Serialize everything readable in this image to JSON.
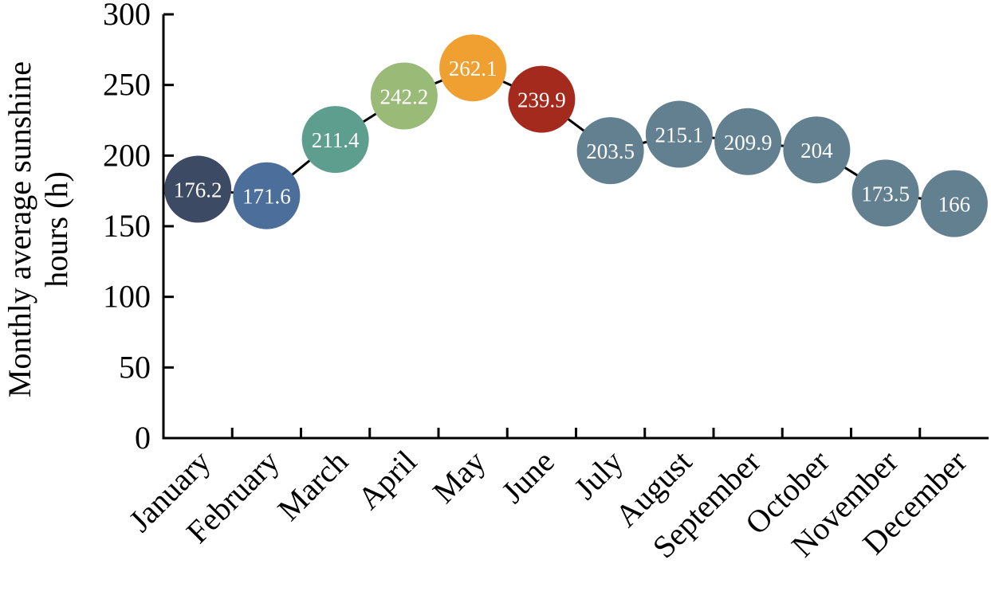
{
  "chart_data": {
    "type": "line",
    "categories": [
      "January",
      "February",
      "March",
      "April",
      "May",
      "June",
      "July",
      "August",
      "September",
      "October",
      "November",
      "December"
    ],
    "values": [
      176.2,
      171.6,
      211.4,
      242.2,
      262.1,
      239.9,
      203.5,
      215.1,
      209.9,
      204,
      173.5,
      166
    ],
    "value_labels": [
      "176.2",
      "171.6",
      "211.4",
      "242.2",
      "262.1",
      "239.9",
      "203.5",
      "215.1",
      "209.9",
      "204",
      "173.5",
      "166"
    ],
    "ylabel_lines": [
      "Monthly average sunshine",
      "hours (h)"
    ],
    "ylim": [
      0,
      300
    ],
    "yticks": [
      0,
      50,
      100,
      150,
      200,
      250,
      300
    ],
    "ytick_labels": [
      "0",
      "50",
      "100",
      "150",
      "200",
      "250",
      "300"
    ],
    "grid": false,
    "legend": "none",
    "marker_colors": [
      "#3d4a63",
      "#4b6f9a",
      "#5e9e8e",
      "#9aba78",
      "#f0a030",
      "#a32a1c",
      "#62808f",
      "#62808f",
      "#62808f",
      "#62808f",
      "#62808f",
      "#62808f"
    ]
  }
}
